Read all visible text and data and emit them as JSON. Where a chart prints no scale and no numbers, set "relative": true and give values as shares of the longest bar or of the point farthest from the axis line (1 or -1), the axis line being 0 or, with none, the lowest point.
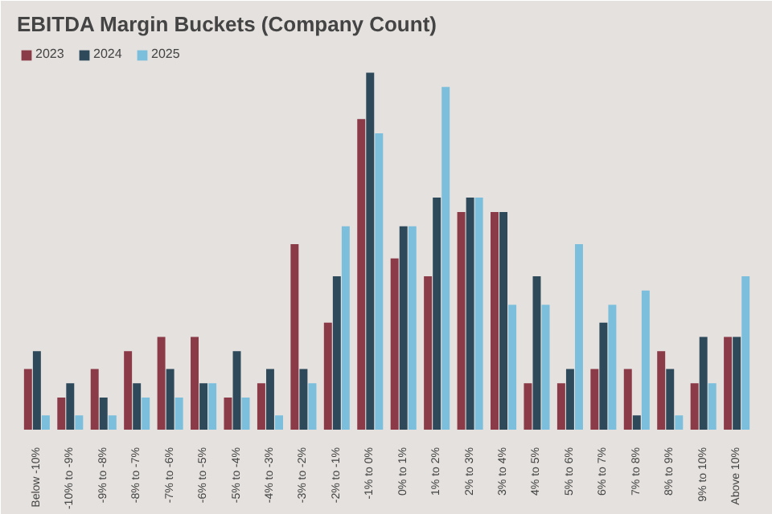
{
  "chart_data": {
    "type": "bar",
    "title": "EBITDA Margin Buckets (Company Count)",
    "relative": true,
    "legend": "top left",
    "grid": false,
    "categories": [
      "Below -10%",
      "-10% to -9%",
      "-9% to -8%",
      "-8% to -7%",
      "-7% to -6%",
      "-6% to -5%",
      "-5% to -4%",
      "-4% to -3%",
      "-3% to -2%",
      "-2% to -1%",
      "-1% to 0%",
      "0% to 1%",
      "1% to 2%",
      "2% to 3%",
      "3% to 4%",
      "4% to 5%",
      "5% to 6%",
      "6% to 7%",
      "7% to 8%",
      "8% to 9%",
      "9% to 10%",
      "Above 10%"
    ],
    "series": [
      {
        "name": "2023",
        "color": "#8b3a48",
        "values": [
          0.17,
          0.09,
          0.17,
          0.22,
          0.26,
          0.26,
          0.09,
          0.13,
          0.52,
          0.3,
          0.87,
          0.48,
          0.43,
          0.61,
          0.61,
          0.13,
          0.13,
          0.17,
          0.17,
          0.22,
          0.13,
          0.26
        ]
      },
      {
        "name": "2024",
        "color": "#2e4a5a",
        "values": [
          0.22,
          0.13,
          0.09,
          0.13,
          0.17,
          0.13,
          0.22,
          0.17,
          0.17,
          0.43,
          1.0,
          0.57,
          0.65,
          0.65,
          0.61,
          0.43,
          0.17,
          0.3,
          0.04,
          0.17,
          0.26,
          0.26
        ]
      },
      {
        "name": "2025",
        "color": "#7bbfdc",
        "values": [
          0.04,
          0.04,
          0.04,
          0.09,
          0.09,
          0.13,
          0.09,
          0.04,
          0.13,
          0.57,
          0.83,
          0.57,
          0.96,
          0.65,
          0.35,
          0.35,
          0.52,
          0.35,
          0.39,
          0.04,
          0.13,
          0.43
        ]
      }
    ]
  }
}
